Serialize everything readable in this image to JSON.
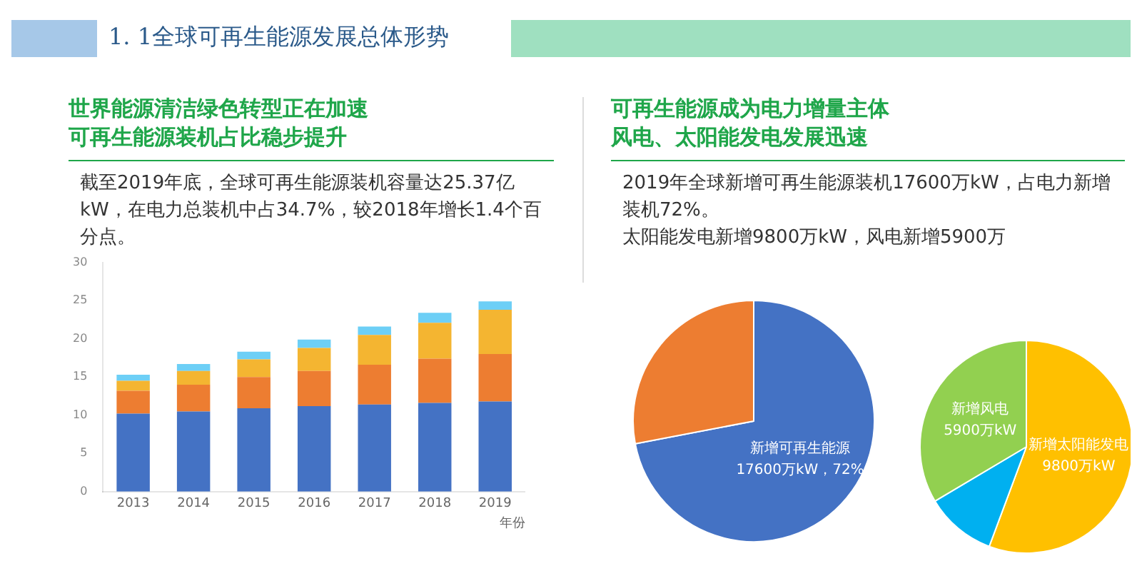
{
  "chart_data": [
    {
      "type": "other",
      "title": "1. 1全球可再生能源发展总体形势"
    },
    {
      "type": "bar",
      "title": "世界能源清洁绿色转型正在加速",
      "subtitle": "可再生能源装机占比稳步提升",
      "annotations": [
        "截至2019年底，全球可再生能源装机容量达25.37亿kW，在电力总装机中占34.7%，较2018年增长1.4个百分点。"
      ],
      "categories": [
        "2013",
        "2014",
        "2015",
        "2016",
        "2017",
        "2018",
        "2019"
      ],
      "stacked": true,
      "xlabel": "年份",
      "ylim": [
        0,
        30
      ],
      "yticks": [
        0,
        5,
        10,
        15,
        20,
        25,
        30
      ],
      "grid": false,
      "legend": false,
      "series": [
        {
          "color": "#4472c4",
          "values": [
            10.2,
            10.5,
            10.9,
            11.2,
            11.4,
            11.6,
            11.8
          ]
        },
        {
          "color": "#ed7d31",
          "values": [
            3.0,
            3.5,
            4.1,
            4.6,
            5.2,
            5.8,
            6.2
          ]
        },
        {
          "color": "#f4b531",
          "values": [
            1.3,
            1.8,
            2.3,
            3.0,
            3.9,
            4.7,
            5.8
          ]
        },
        {
          "color": "#6dcff6",
          "values": [
            0.8,
            0.9,
            1.0,
            1.1,
            1.1,
            1.3,
            1.1
          ]
        }
      ]
    },
    {
      "type": "pie",
      "title": "可再生能源成为电力增量主体",
      "subtitle": "风电、太阳能发电发展迅速",
      "annotations": [
        "2019年全球新增可再生能源装机17600万kW，占电力新增装机72%。",
        "太阳能发电新增9800万kW，风电新增5900万"
      ],
      "categories": [
        "新增可再生能源",
        null
      ],
      "values": [
        72,
        28
      ],
      "colors": [
        "#4472c4",
        "#ed7d31"
      ],
      "value_labels": [
        "17600万kW，72%",
        null
      ]
    },
    {
      "type": "pie",
      "categories": [
        "新增太阳能发电",
        null,
        "新增风电"
      ],
      "values": [
        9800,
        1900,
        5900
      ],
      "colors": [
        "#ffc000",
        "#00b0f0",
        "#92d050"
      ],
      "value_labels": [
        "9800万kW",
        null,
        "5900万kW"
      ]
    }
  ]
}
